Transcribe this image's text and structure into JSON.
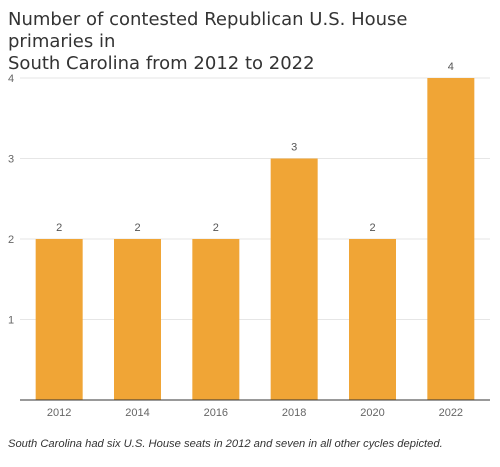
{
  "chart_data": {
    "type": "bar",
    "title_lines": [
      "Number of contested Republican U.S. House primaries in",
      "South Carolina from 2012 to 2022"
    ],
    "categories": [
      "2012",
      "2014",
      "2016",
      "2018",
      "2020",
      "2022"
    ],
    "values": [
      2,
      2,
      2,
      3,
      2,
      4
    ],
    "data_labels": [
      "2",
      "2",
      "2",
      "3",
      "2",
      "4"
    ],
    "y_ticks": [
      "1",
      "2",
      "3",
      "4"
    ],
    "ylim": [
      0,
      4
    ],
    "xlabel": "",
    "ylabel": "",
    "bar_color": "#F0A536",
    "grid": true,
    "note": "South Carolina had six U.S. House seats in 2012 and seven in all other cycles depicted."
  }
}
